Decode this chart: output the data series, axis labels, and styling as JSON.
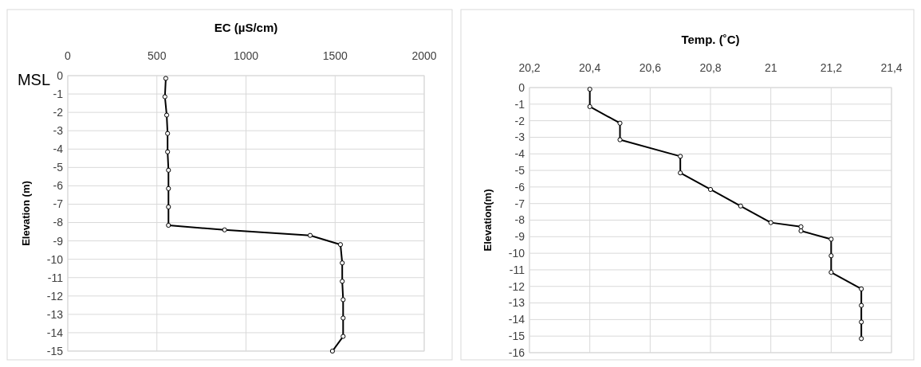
{
  "chart_data": [
    {
      "type": "line",
      "xlabel": "EC (µS/cm)",
      "ylabel": "Elevation (m)",
      "xlim": [
        0,
        2000
      ],
      "xticks": [
        0,
        500,
        1000,
        1500,
        2000
      ],
      "ylim": [
        -15,
        0
      ],
      "yticks": [
        0,
        -1,
        -2,
        -3,
        -4,
        -5,
        -6,
        -7,
        -8,
        -9,
        -10,
        -11,
        -12,
        -13,
        -14,
        -15
      ],
      "grid": true,
      "marker": "circle",
      "annotations": [
        "MSL"
      ],
      "series": [
        {
          "color": "#000000",
          "x": [
            550,
            545,
            555,
            560,
            560,
            565,
            565,
            565,
            565,
            880,
            1360,
            1530,
            1540,
            1540,
            1545,
            1545,
            1545,
            1485
          ],
          "values": [
            -0.15,
            -1.15,
            -2.15,
            -3.15,
            -4.15,
            -5.15,
            -6.15,
            -7.15,
            -8.15,
            -8.4,
            -8.7,
            -9.2,
            -10.2,
            -11.2,
            -12.2,
            -13.2,
            -14.2,
            -15
          ]
        }
      ]
    },
    {
      "type": "line",
      "xlabel": "Temp. (˚C)",
      "ylabel": "Elevation(m)",
      "xlim": [
        20.2,
        21.4
      ],
      "xticks": [
        {
          "value": 20.2,
          "label": "20,2"
        },
        {
          "value": 20.4,
          "label": "20,4"
        },
        {
          "value": 20.6,
          "label": "20,6"
        },
        {
          "value": 20.8,
          "label": "20,8"
        },
        21,
        {
          "value": 21.2,
          "label": "21,2"
        },
        {
          "value": 21.4,
          "label": "21,4"
        }
      ],
      "ylim": [
        -16,
        0
      ],
      "yticks": [
        0,
        -1,
        -2,
        -3,
        -4,
        -5,
        -6,
        -7,
        -8,
        -9,
        -10,
        -11,
        -12,
        -13,
        -14,
        -15,
        -16
      ],
      "grid": true,
      "marker": "circle",
      "series": [
        {
          "color": "#000000",
          "x": [
            20.4,
            20.4,
            20.5,
            20.5,
            20.7,
            20.7,
            20.8,
            20.9,
            21.0,
            21.1,
            21.1,
            21.2,
            21.2,
            21.2,
            21.3,
            21.3,
            21.3,
            21.3
          ],
          "values": [
            -0.1,
            -1.15,
            -2.15,
            -3.15,
            -4.15,
            -5.15,
            -6.15,
            -7.15,
            -8.15,
            -8.4,
            -8.65,
            -9.15,
            -10.15,
            -11.15,
            -12.15,
            -13.15,
            -14.15,
            -15.15
          ]
        }
      ]
    }
  ]
}
